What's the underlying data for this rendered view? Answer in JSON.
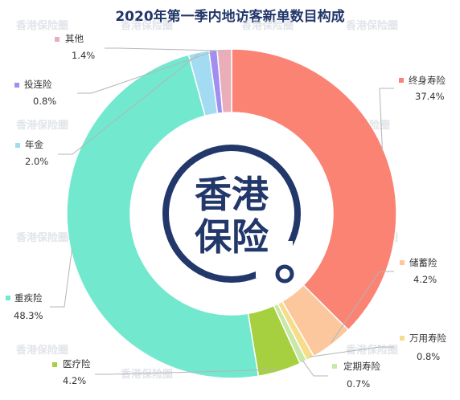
{
  "chart_data": {
    "type": "pie",
    "donut": true,
    "title": "2020年第一季内地访客新单数目构成",
    "slices": [
      {
        "label": "终身寿险",
        "value": 37.4,
        "display": "37.4%",
        "color": "#fa8373"
      },
      {
        "label": "储蓄险",
        "value": 4.2,
        "display": "4.2%",
        "color": "#fcc79c"
      },
      {
        "label": "万用寿险",
        "value": 0.8,
        "display": "0.8%",
        "color": "#f7dc8c"
      },
      {
        "label": "定期寿险",
        "value": 0.7,
        "display": "0.7%",
        "color": "#c8e8a8"
      },
      {
        "label": "医疗险",
        "value": 4.2,
        "display": "4.2%",
        "color": "#a6d040"
      },
      {
        "label": "重疾险",
        "value": 48.3,
        "display": "48.3%",
        "color": "#72e8ce"
      },
      {
        "label": "年金",
        "value": 2.0,
        "display": "2.0%",
        "color": "#a3dcf2"
      },
      {
        "label": "投连险",
        "value": 0.8,
        "display": "0.8%",
        "color": "#a08ef0"
      },
      {
        "label": "其他",
        "value": 1.4,
        "display": "1.4%",
        "color": "#e9aeba"
      }
    ]
  },
  "logo": {
    "line1": "香港",
    "line2": "保险",
    "color": "#22376a"
  },
  "watermark": {
    "text": "香港保险圈"
  }
}
